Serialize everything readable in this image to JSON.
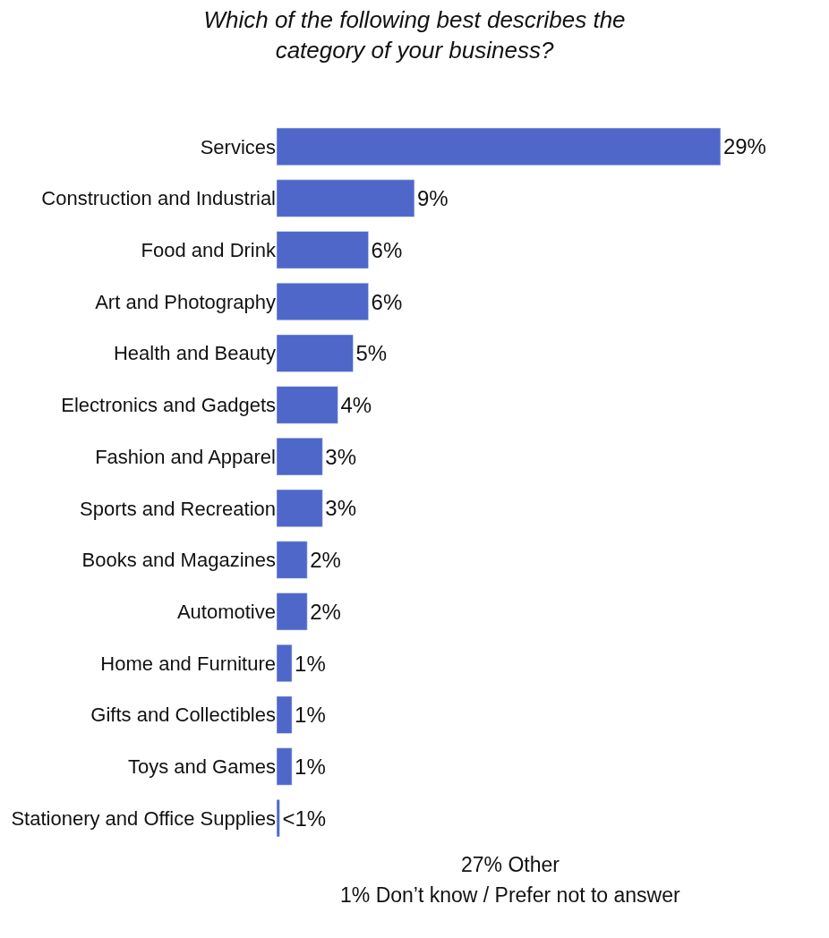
{
  "chart_data": {
    "type": "bar",
    "orientation": "horizontal",
    "title": "Which of the following best describes the\ncategory of your business?",
    "categories": [
      "Services",
      "Construction and Industrial",
      "Food and Drink",
      "Art and Photography",
      "Health and Beauty",
      "Electronics and Gadgets",
      "Fashion and Apparel",
      "Sports and Recreation",
      "Books and Magazines",
      "Automotive",
      "Home and Furniture",
      "Gifts and Collectibles",
      "Toys and Games",
      "Stationery and Office Supplies"
    ],
    "values": [
      29,
      9,
      6,
      6,
      5,
      4,
      3,
      3,
      2,
      2,
      1,
      1,
      1,
      0.2
    ],
    "value_labels": [
      "29%",
      "9%",
      "6%",
      "6%",
      "5%",
      "4%",
      "3%",
      "3%",
      "2%",
      "2%",
      "1%",
      "1%",
      "1%",
      "<1%"
    ],
    "color": "#4f67c9",
    "annotations": [
      "27% Other",
      "1% Don’t know / Prefer not to answer"
    ]
  }
}
